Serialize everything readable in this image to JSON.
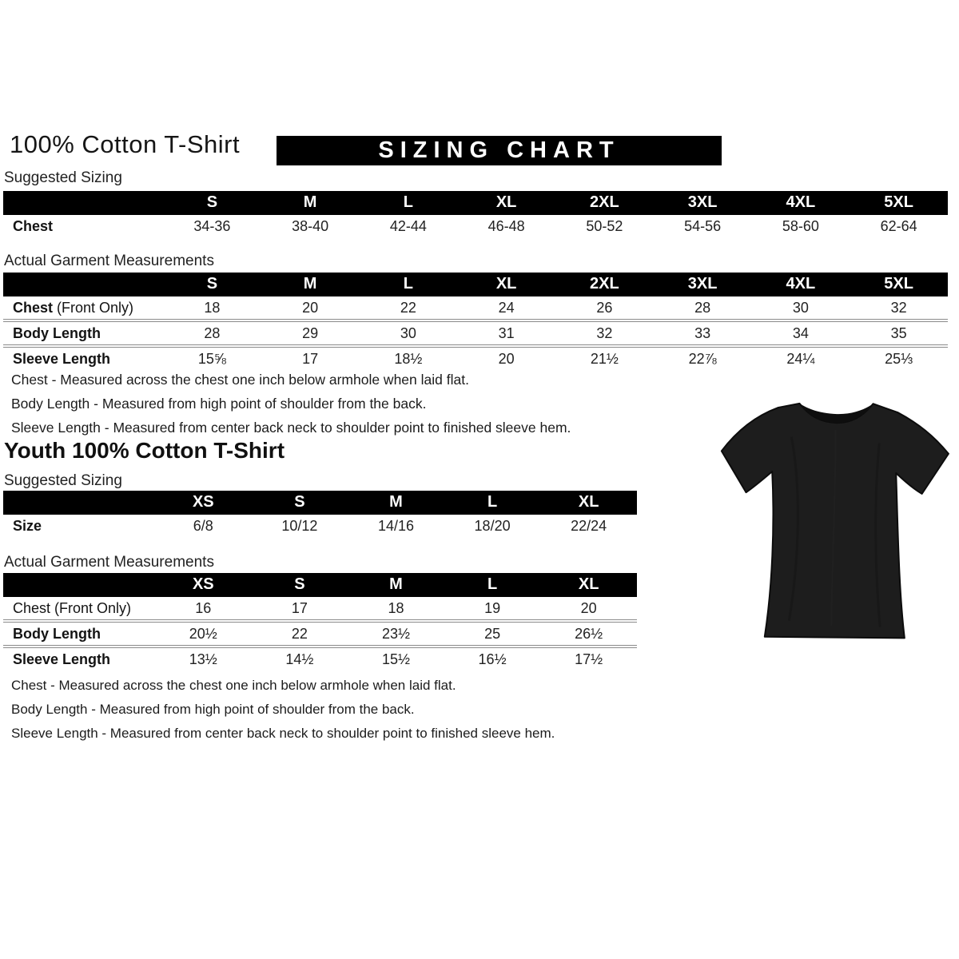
{
  "header": {
    "title": "100% Cotton T-Shirt",
    "banner": "SIZING CHART"
  },
  "adult": {
    "suggested_label": "Suggested Sizing",
    "garment_label": "Actual Garment Measurements",
    "sizes": [
      "S",
      "M",
      "L",
      "XL",
      "2XL",
      "3XL",
      "4XL",
      "5XL"
    ],
    "suggested_rows": [
      {
        "label": "Chest",
        "suffix": "",
        "values": [
          "34-36",
          "38-40",
          "42-44",
          "46-48",
          "50-52",
          "54-56",
          "58-60",
          "62-64"
        ]
      }
    ],
    "garment_rows": [
      {
        "label": "Chest",
        "suffix": " (Front Only)",
        "values": [
          "18",
          "20",
          "22",
          "24",
          "26",
          "28",
          "30",
          "32"
        ]
      },
      {
        "label": "Body Length",
        "suffix": "",
        "values": [
          "28",
          "29",
          "30",
          "31",
          "32",
          "33",
          "34",
          "35"
        ]
      },
      {
        "label": "Sleeve Length",
        "suffix": "",
        "values": [
          "15⅝",
          "17",
          "18½",
          "20",
          "21½",
          "22⅞",
          "24¼",
          "25⅓"
        ]
      }
    ],
    "notes": [
      "Chest - Measured across the chest one inch below armhole when laid flat.",
      "Body Length - Measured from high point of shoulder from the back.",
      "Sleeve Length - Measured from center back neck to shoulder point to finished sleeve hem."
    ]
  },
  "youth": {
    "title": "Youth 100% Cotton T-Shirt",
    "suggested_label": "Suggested Sizing",
    "garment_label": "Actual Garment Measurements",
    "sizes": [
      "XS",
      "S",
      "M",
      "L",
      "XL"
    ],
    "suggested_rows": [
      {
        "label": "Size",
        "suffix": "",
        "values": [
          "6/8",
          "10/12",
          "14/16",
          "18/20",
          "22/24"
        ]
      }
    ],
    "garment_rows": [
      {
        "label": "Chest",
        "suffix": " (Front Only)",
        "label_bold": false,
        "values": [
          "16",
          "17",
          "18",
          "19",
          "20"
        ]
      },
      {
        "label": "Body Length",
        "suffix": "",
        "values": [
          "20½",
          "22",
          "23½",
          "25",
          "26½"
        ]
      },
      {
        "label": "Sleeve Length",
        "suffix": "",
        "values": [
          "13½",
          "14½",
          "15½",
          "16½",
          "17½"
        ]
      }
    ],
    "notes": [
      "Chest - Measured across the chest one inch below armhole when laid flat.",
      "Body Length - Measured from high point of shoulder from the back.",
      "Sleeve Length - Measured from center back neck to shoulder point to finished sleeve hem."
    ]
  },
  "image": {
    "tshirt_alt": "black short-sleeve crew-neck t-shirt",
    "tshirt_color": "#1d1d1d"
  },
  "colors": {
    "bar_bg": "#000000",
    "bar_text": "#ffffff",
    "separator": "#8a8a8a"
  }
}
